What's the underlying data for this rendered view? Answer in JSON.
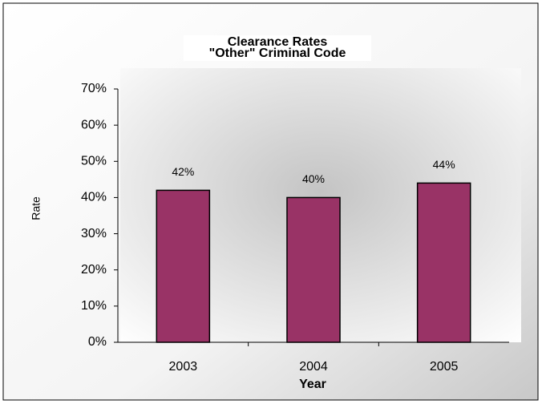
{
  "chart_data": {
    "type": "bar",
    "title": "Clearance Rates",
    "subtitle": "\"Other\" Criminal Code",
    "x_label": "Year",
    "y_label": "Rate",
    "categories": [
      "2003",
      "2004",
      "2005"
    ],
    "values": [
      42,
      40,
      44
    ],
    "value_labels": [
      "42%",
      "40%",
      "44%"
    ],
    "color": "#993366",
    "ylim": [
      0,
      70
    ],
    "yticks": [
      {
        "value": 0,
        "label": "0%"
      },
      {
        "value": 10,
        "label": "10%"
      },
      {
        "value": 20,
        "label": "20%"
      },
      {
        "value": 30,
        "label": "30%"
      },
      {
        "value": 40,
        "label": "40%"
      },
      {
        "value": 50,
        "label": "50%"
      },
      {
        "value": 60,
        "label": "60%"
      },
      {
        "value": 70,
        "label": "70%"
      }
    ],
    "grid": false
  }
}
